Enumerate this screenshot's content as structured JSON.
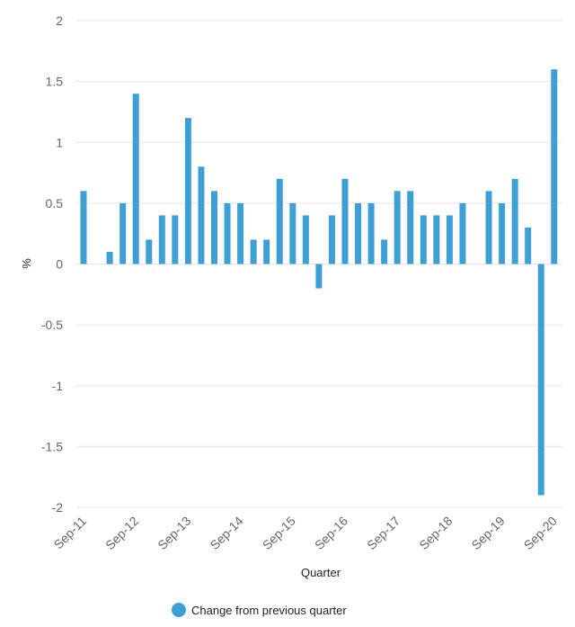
{
  "chart_data": {
    "type": "bar",
    "xlabel": "Quarter",
    "ylabel": "%",
    "ylim": [
      -2,
      2
    ],
    "yticks": [
      2,
      1.5,
      1,
      0.5,
      0,
      -0.5,
      -1,
      -1.5,
      -2
    ],
    "ytick_labels": [
      "2",
      "1.5",
      "1",
      "0.5",
      "0",
      "-0.5",
      "-1",
      "-1.5",
      "-2"
    ],
    "xtick_labels": [
      "Sep-11",
      "Sep-12",
      "Sep-13",
      "Sep-14",
      "Sep-15",
      "Sep-16",
      "Sep-17",
      "Sep-18",
      "Sep-19",
      "Sep-20"
    ],
    "xtick_category_indices": [
      0,
      4,
      8,
      12,
      16,
      20,
      24,
      28,
      32,
      36
    ],
    "grid": true,
    "legend_position": "bottom",
    "categories": [
      "Sep-11",
      "Dec-11",
      "Mar-12",
      "Jun-12",
      "Sep-12",
      "Dec-12",
      "Mar-13",
      "Jun-13",
      "Sep-13",
      "Dec-13",
      "Mar-14",
      "Jun-14",
      "Sep-14",
      "Dec-14",
      "Mar-15",
      "Jun-15",
      "Sep-15",
      "Dec-15",
      "Mar-16",
      "Jun-16",
      "Sep-16",
      "Dec-16",
      "Mar-17",
      "Jun-17",
      "Sep-17",
      "Dec-17",
      "Mar-18",
      "Jun-18",
      "Sep-18",
      "Dec-18",
      "Mar-19",
      "Jun-19",
      "Sep-19",
      "Dec-19",
      "Mar-20",
      "Jun-20",
      "Sep-20"
    ],
    "series": [
      {
        "name": "Change from previous quarter",
        "color": "#3d9fd3",
        "values": [
          0.6,
          0.0,
          0.1,
          0.5,
          1.4,
          0.2,
          0.4,
          0.4,
          1.2,
          0.8,
          0.6,
          0.5,
          0.5,
          0.2,
          0.2,
          0.7,
          0.5,
          0.4,
          -0.2,
          0.4,
          0.7,
          0.5,
          0.5,
          0.2,
          0.6,
          0.6,
          0.4,
          0.4,
          0.4,
          0.5,
          0.0,
          0.6,
          0.5,
          0.7,
          0.3,
          -1.9,
          1.6
        ]
      }
    ]
  }
}
